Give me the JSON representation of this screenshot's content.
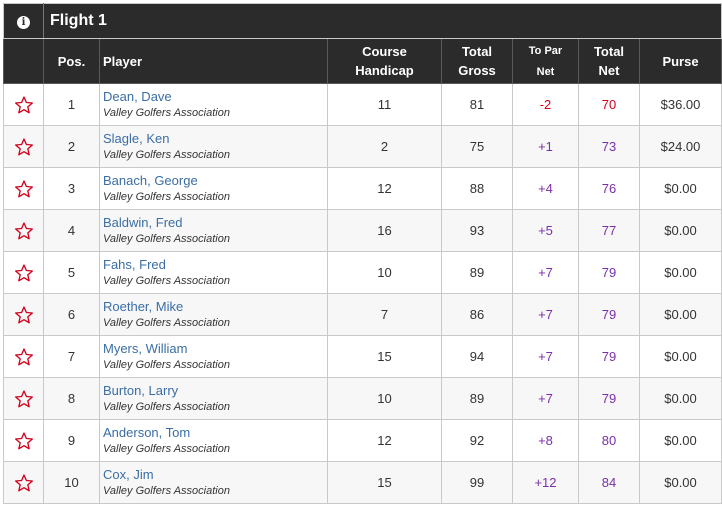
{
  "flight_title": "Flight 1",
  "info_icon": "i",
  "columns": {
    "pos": "Pos.",
    "player": "Player",
    "handicap_line1": "Course",
    "handicap_line2": "Handicap",
    "gross_line1": "Total",
    "gross_line2": "Gross",
    "topar_line1": "To Par",
    "topar_line2": "Net",
    "net_line1": "Total",
    "net_line2": "Net",
    "purse": "Purse"
  },
  "colors": {
    "header_bg": "#2b2b2b",
    "star": "#d0021b",
    "name_link": "#3a6ea5",
    "under_par": "#d0021b",
    "over_par": "#7b2fa8"
  },
  "rows": [
    {
      "pos": "1",
      "name": "Dean, Dave",
      "club": "Valley Golfers Association",
      "handicap": "11",
      "gross": "81",
      "topar": "-2",
      "net": "70",
      "purse": "$36.00"
    },
    {
      "pos": "2",
      "name": "Slagle, Ken",
      "club": "Valley Golfers Association",
      "handicap": "2",
      "gross": "75",
      "topar": "+1",
      "net": "73",
      "purse": "$24.00"
    },
    {
      "pos": "3",
      "name": "Banach, George",
      "club": "Valley Golfers Association",
      "handicap": "12",
      "gross": "88",
      "topar": "+4",
      "net": "76",
      "purse": "$0.00"
    },
    {
      "pos": "4",
      "name": "Baldwin, Fred",
      "club": "Valley Golfers Association",
      "handicap": "16",
      "gross": "93",
      "topar": "+5",
      "net": "77",
      "purse": "$0.00"
    },
    {
      "pos": "5",
      "name": "Fahs, Fred",
      "club": "Valley Golfers Association",
      "handicap": "10",
      "gross": "89",
      "topar": "+7",
      "net": "79",
      "purse": "$0.00"
    },
    {
      "pos": "6",
      "name": "Roether, Mike",
      "club": "Valley Golfers Association",
      "handicap": "7",
      "gross": "86",
      "topar": "+7",
      "net": "79",
      "purse": "$0.00"
    },
    {
      "pos": "7",
      "name": "Myers, William",
      "club": "Valley Golfers Association",
      "handicap": "15",
      "gross": "94",
      "topar": "+7",
      "net": "79",
      "purse": "$0.00"
    },
    {
      "pos": "8",
      "name": "Burton, Larry",
      "club": "Valley Golfers Association",
      "handicap": "10",
      "gross": "89",
      "topar": "+7",
      "net": "79",
      "purse": "$0.00"
    },
    {
      "pos": "9",
      "name": "Anderson, Tom",
      "club": "Valley Golfers Association",
      "handicap": "12",
      "gross": "92",
      "topar": "+8",
      "net": "80",
      "purse": "$0.00"
    },
    {
      "pos": "10",
      "name": "Cox, Jim",
      "club": "Valley Golfers Association",
      "handicap": "15",
      "gross": "99",
      "topar": "+12",
      "net": "84",
      "purse": "$0.00"
    }
  ]
}
